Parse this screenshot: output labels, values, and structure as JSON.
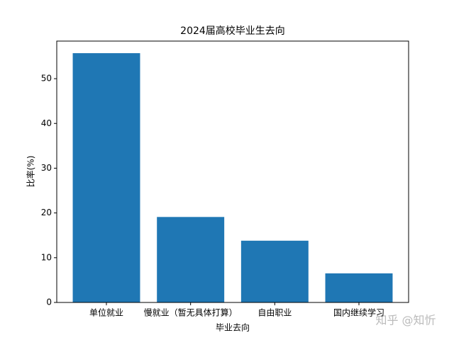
{
  "chart_data": {
    "type": "bar",
    "title": "2024届高校毕业生去向",
    "x_label": "毕业去向",
    "y_label": "比率(%)",
    "categories": [
      "单位就业",
      "慢就业（暂无具体打算）",
      "自由职业",
      "国内继续学习"
    ],
    "values": [
      55.7,
      19.1,
      13.8,
      6.5
    ],
    "color": "#1f77b4",
    "ylim": [
      0,
      58.4
    ],
    "yticks": [
      0,
      10,
      20,
      30,
      40,
      50
    ],
    "grid": false
  },
  "watermark": "知乎 @知忻"
}
